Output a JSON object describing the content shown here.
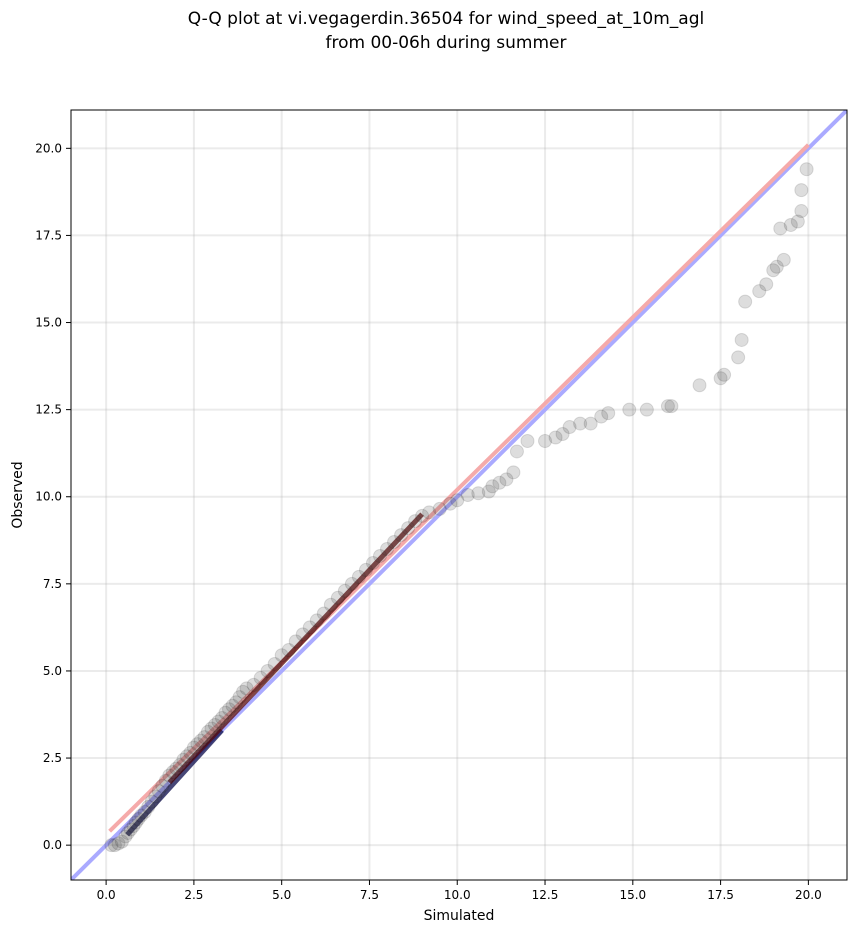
{
  "chart_data": {
    "type": "scatter",
    "title_lines": [
      "Q-Q plot at vi.vegagerdin.36504 for wind_speed_at_10m_agl",
      "from 00-06h during summer"
    ],
    "xlabel": "Simulated",
    "ylabel": "Observed",
    "xlim": [
      -1.0,
      21.1
    ],
    "ylim": [
      -1.0,
      21.1
    ],
    "xticks": [
      0.0,
      2.5,
      5.0,
      7.5,
      10.0,
      12.5,
      15.0,
      17.5,
      20.0
    ],
    "yticks": [
      0.0,
      2.5,
      5.0,
      7.5,
      10.0,
      12.5,
      15.0,
      17.5,
      20.0
    ],
    "xtick_labels": [
      "0.0",
      "2.5",
      "5.0",
      "7.5",
      "10.0",
      "12.5",
      "15.0",
      "17.5",
      "20.0"
    ],
    "ytick_labels": [
      "0.0",
      "2.5",
      "5.0",
      "7.5",
      "10.0",
      "12.5",
      "15.0",
      "17.5",
      "20.0"
    ],
    "grid": true,
    "reference_lines": [
      {
        "kind": "identity",
        "color": "#aaaaff",
        "x": [
          -1.0,
          21.1
        ],
        "y": [
          -1.0,
          21.1
        ]
      },
      {
        "kind": "fit",
        "color": "#f5aaaa",
        "x": [
          0.1,
          20.0
        ],
        "y": [
          0.4,
          20.1
        ]
      }
    ],
    "core_segments": [
      {
        "color": "#0a0a4a",
        "x": [
          0.6,
          3.3
        ],
        "y": [
          0.3,
          3.3
        ]
      },
      {
        "color": "#5a0a0a",
        "x": [
          1.8,
          9.0
        ],
        "y": [
          1.8,
          9.5
        ]
      }
    ],
    "points": [
      [
        0.15,
        0.0
      ],
      [
        0.25,
        0.0
      ],
      [
        0.35,
        0.05
      ],
      [
        0.45,
        0.1
      ],
      [
        0.55,
        0.25
      ],
      [
        0.62,
        0.35
      ],
      [
        0.7,
        0.45
      ],
      [
        0.78,
        0.55
      ],
      [
        0.85,
        0.65
      ],
      [
        0.92,
        0.75
      ],
      [
        1.0,
        0.85
      ],
      [
        1.1,
        0.95
      ],
      [
        1.2,
        1.1
      ],
      [
        1.3,
        1.25
      ],
      [
        1.4,
        1.4
      ],
      [
        1.5,
        1.55
      ],
      [
        1.6,
        1.7
      ],
      [
        1.7,
        1.85
      ],
      [
        1.8,
        2.0
      ],
      [
        1.9,
        2.1
      ],
      [
        2.0,
        2.2
      ],
      [
        2.1,
        2.3
      ],
      [
        2.2,
        2.45
      ],
      [
        2.3,
        2.55
      ],
      [
        2.4,
        2.65
      ],
      [
        2.5,
        2.8
      ],
      [
        2.6,
        2.9
      ],
      [
        2.7,
        3.0
      ],
      [
        2.8,
        3.1
      ],
      [
        2.9,
        3.25
      ],
      [
        3.0,
        3.35
      ],
      [
        3.1,
        3.45
      ],
      [
        3.2,
        3.55
      ],
      [
        3.3,
        3.65
      ],
      [
        3.4,
        3.8
      ],
      [
        3.5,
        3.9
      ],
      [
        3.6,
        4.0
      ],
      [
        3.7,
        4.1
      ],
      [
        3.8,
        4.25
      ],
      [
        3.9,
        4.4
      ],
      [
        4.0,
        4.5
      ],
      [
        4.2,
        4.6
      ],
      [
        4.4,
        4.8
      ],
      [
        4.6,
        5.0
      ],
      [
        4.8,
        5.2
      ],
      [
        5.0,
        5.45
      ],
      [
        5.2,
        5.6
      ],
      [
        5.4,
        5.85
      ],
      [
        5.6,
        6.05
      ],
      [
        5.8,
        6.25
      ],
      [
        6.0,
        6.45
      ],
      [
        6.2,
        6.65
      ],
      [
        6.4,
        6.9
      ],
      [
        6.6,
        7.1
      ],
      [
        6.8,
        7.3
      ],
      [
        7.0,
        7.5
      ],
      [
        7.2,
        7.7
      ],
      [
        7.4,
        7.9
      ],
      [
        7.6,
        8.1
      ],
      [
        7.8,
        8.3
      ],
      [
        8.0,
        8.5
      ],
      [
        8.2,
        8.7
      ],
      [
        8.4,
        8.9
      ],
      [
        8.6,
        9.1
      ],
      [
        8.8,
        9.3
      ],
      [
        9.0,
        9.45
      ],
      [
        9.2,
        9.55
      ],
      [
        9.5,
        9.65
      ],
      [
        9.8,
        9.8
      ],
      [
        10.0,
        9.9
      ],
      [
        10.3,
        10.05
      ],
      [
        10.6,
        10.1
      ],
      [
        10.9,
        10.15
      ],
      [
        11.0,
        10.3
      ],
      [
        11.2,
        10.4
      ],
      [
        11.4,
        10.5
      ],
      [
        11.6,
        10.7
      ],
      [
        11.7,
        11.3
      ],
      [
        12.0,
        11.6
      ],
      [
        12.5,
        11.6
      ],
      [
        12.8,
        11.7
      ],
      [
        13.0,
        11.8
      ],
      [
        13.2,
        12.0
      ],
      [
        13.5,
        12.1
      ],
      [
        13.8,
        12.1
      ],
      [
        14.1,
        12.3
      ],
      [
        14.3,
        12.4
      ],
      [
        14.9,
        12.5
      ],
      [
        15.4,
        12.5
      ],
      [
        16.0,
        12.6
      ],
      [
        16.1,
        12.6
      ],
      [
        16.9,
        13.2
      ],
      [
        17.5,
        13.4
      ],
      [
        17.6,
        13.5
      ],
      [
        18.0,
        14.0
      ],
      [
        18.1,
        14.5
      ],
      [
        18.2,
        15.6
      ],
      [
        18.6,
        15.9
      ],
      [
        18.8,
        16.1
      ],
      [
        19.0,
        16.5
      ],
      [
        19.1,
        16.6
      ],
      [
        19.3,
        16.8
      ],
      [
        19.2,
        17.7
      ],
      [
        19.5,
        17.8
      ],
      [
        19.7,
        17.9
      ],
      [
        19.8,
        18.2
      ],
      [
        19.8,
        18.8
      ],
      [
        19.95,
        19.4
      ]
    ]
  }
}
